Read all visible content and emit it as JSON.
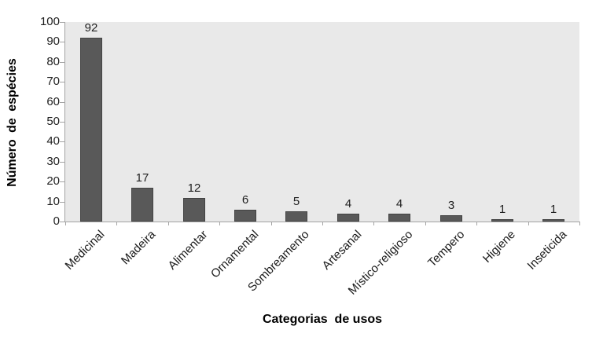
{
  "chart_data": {
    "type": "bar",
    "title": "",
    "categories": [
      "Medicinal",
      "Madeira",
      "Alimentar",
      "Ornamental",
      "Sombreamento",
      "Artesanal",
      "Místico-religioso",
      "Tempero",
      "Higiene",
      "Inseticida"
    ],
    "values": [
      92,
      17,
      12,
      6,
      5,
      4,
      4,
      3,
      1,
      1
    ],
    "data_labels_visible": true,
    "xlabel": "Categorias  de usos",
    "ylabel": "Número de espécies",
    "ylim": [
      0,
      100
    ],
    "ytick_step": 10,
    "grid": false,
    "legend_position": "none",
    "category_label_rotation_deg": -45,
    "colors": {
      "bar_fill": "#595959",
      "bar_border": "#434343",
      "plot_background": "#e9e9e9",
      "axis_line": "#a3a3a3",
      "tick_text": "#1f1f1f",
      "title_text": "#000000",
      "page_background": "#ffffff"
    }
  }
}
